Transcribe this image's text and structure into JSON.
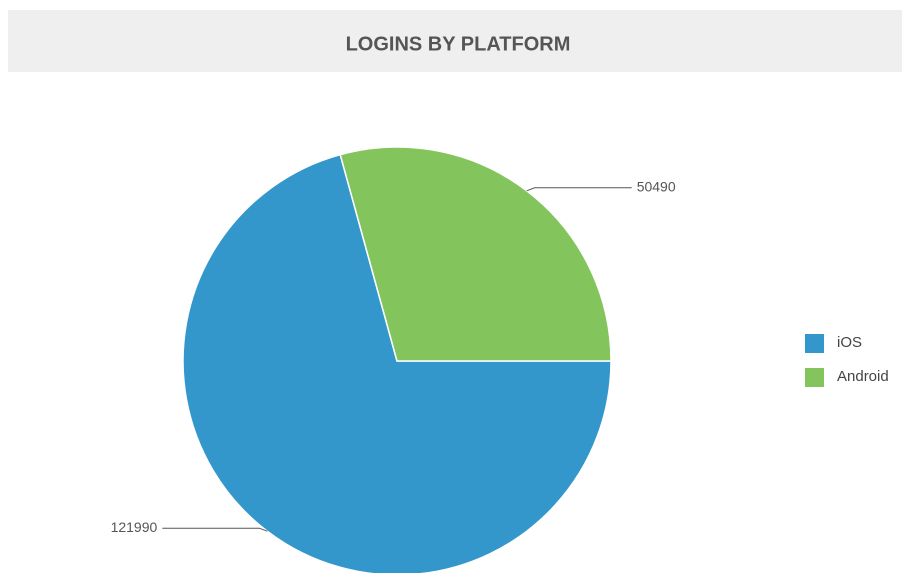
{
  "chart_data": {
    "type": "pie",
    "title": "LOGINS BY PLATFORM",
    "categories": [
      "iOS",
      "Android"
    ],
    "values": [
      121990,
      50490
    ],
    "colors": [
      "#3497cc",
      "#84c45d"
    ],
    "legend": "right",
    "data_labels": true
  }
}
